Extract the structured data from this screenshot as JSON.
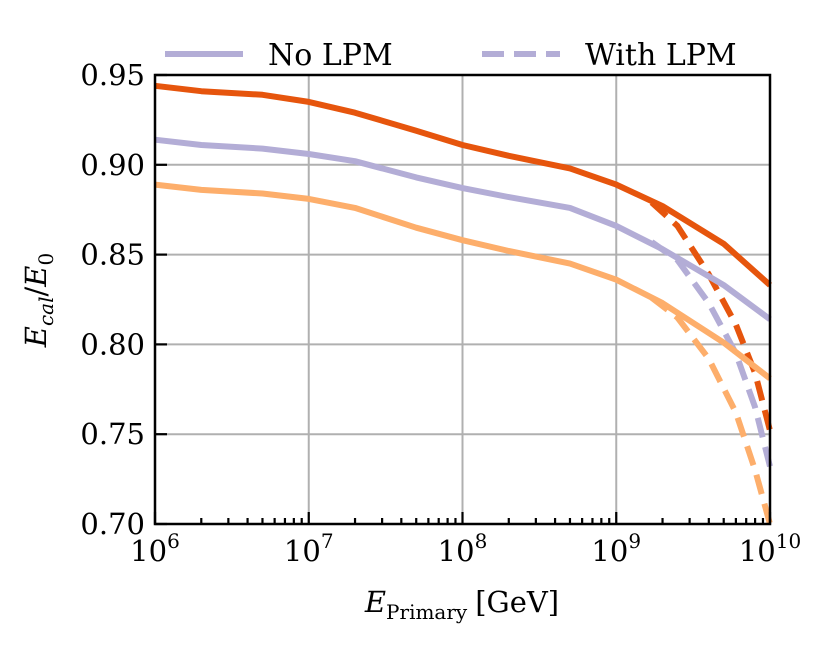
{
  "chart_data": {
    "type": "line",
    "xscale": "log",
    "xlim": [
      1000000,
      10000000000
    ],
    "ylim": [
      0.7,
      0.95
    ],
    "xlabel": {
      "base": "E",
      "sub": "Primary",
      "unit": "[GeV]"
    },
    "ylabel": {
      "num_base": "E",
      "num_sub": "cal",
      "den_base": "E",
      "den_sub": "0"
    },
    "x_ticks": [
      {
        "value": 1000000,
        "base": "10",
        "exp": "6"
      },
      {
        "value": 10000000,
        "base": "10",
        "exp": "7"
      },
      {
        "value": 100000000,
        "base": "10",
        "exp": "8"
      },
      {
        "value": 1000000000,
        "base": "10",
        "exp": "9"
      },
      {
        "value": 10000000000,
        "base": "10",
        "exp": "10"
      }
    ],
    "y_ticks": [
      {
        "value": 0.7,
        "label": "0.70"
      },
      {
        "value": 0.75,
        "label": "0.75"
      },
      {
        "value": 0.8,
        "label": "0.80"
      },
      {
        "value": 0.85,
        "label": "0.85"
      },
      {
        "value": 0.9,
        "label": "0.90"
      },
      {
        "value": 0.95,
        "label": "0.95"
      }
    ],
    "grid": true,
    "legend": {
      "placement": "top, above plot",
      "entries": [
        {
          "label": "No LPM",
          "style": "solid",
          "color": "#b3add6"
        },
        {
          "label": "With LPM",
          "style": "dashed",
          "color": "#b3add6"
        }
      ]
    },
    "series": [
      {
        "name": "dark-orange-no-lpm",
        "color": "#e6550d",
        "style": "solid",
        "x": [
          1000000,
          2000000,
          5000000,
          10000000,
          20000000,
          50000000,
          100000000,
          200000000,
          500000000,
          1000000000,
          2000000000,
          5000000000,
          10000000000
        ],
        "y": [
          0.944,
          0.941,
          0.939,
          0.935,
          0.929,
          0.919,
          0.911,
          0.905,
          0.898,
          0.889,
          0.877,
          0.856,
          0.833
        ]
      },
      {
        "name": "dark-orange-with-lpm",
        "color": "#e6550d",
        "style": "dashed",
        "x": [
          1700000000,
          2500000000,
          4000000000,
          6000000000,
          8000000000,
          10000000000
        ],
        "y": [
          0.879,
          0.866,
          0.839,
          0.811,
          0.784,
          0.752
        ]
      },
      {
        "name": "lavender-no-lpm",
        "color": "#b3add6",
        "style": "solid",
        "x": [
          1000000,
          2000000,
          5000000,
          10000000,
          20000000,
          50000000,
          100000000,
          200000000,
          500000000,
          1000000000,
          2000000000,
          5000000000,
          10000000000
        ],
        "y": [
          0.914,
          0.911,
          0.909,
          0.906,
          0.902,
          0.893,
          0.887,
          0.882,
          0.876,
          0.866,
          0.853,
          0.833,
          0.814
        ]
      },
      {
        "name": "lavender-with-lpm",
        "color": "#b3add6",
        "style": "dashed",
        "x": [
          1700000000,
          2500000000,
          4000000000,
          6000000000,
          8000000000,
          10000000000
        ],
        "y": [
          0.857,
          0.847,
          0.823,
          0.795,
          0.765,
          0.732
        ]
      },
      {
        "name": "light-orange-no-lpm",
        "color": "#fdae6b",
        "style": "solid",
        "x": [
          1000000,
          2000000,
          5000000,
          10000000,
          20000000,
          50000000,
          100000000,
          200000000,
          500000000,
          1000000000,
          2000000000,
          5000000000,
          10000000000
        ],
        "y": [
          0.889,
          0.886,
          0.884,
          0.881,
          0.876,
          0.865,
          0.858,
          0.852,
          0.845,
          0.836,
          0.823,
          0.801,
          0.781
        ]
      },
      {
        "name": "light-orange-with-lpm",
        "color": "#fdae6b",
        "style": "dashed",
        "x": [
          1700000000,
          2500000000,
          4000000000,
          6000000000,
          8000000000,
          10000000000
        ],
        "y": [
          0.826,
          0.815,
          0.792,
          0.762,
          0.73,
          0.7
        ]
      }
    ]
  }
}
